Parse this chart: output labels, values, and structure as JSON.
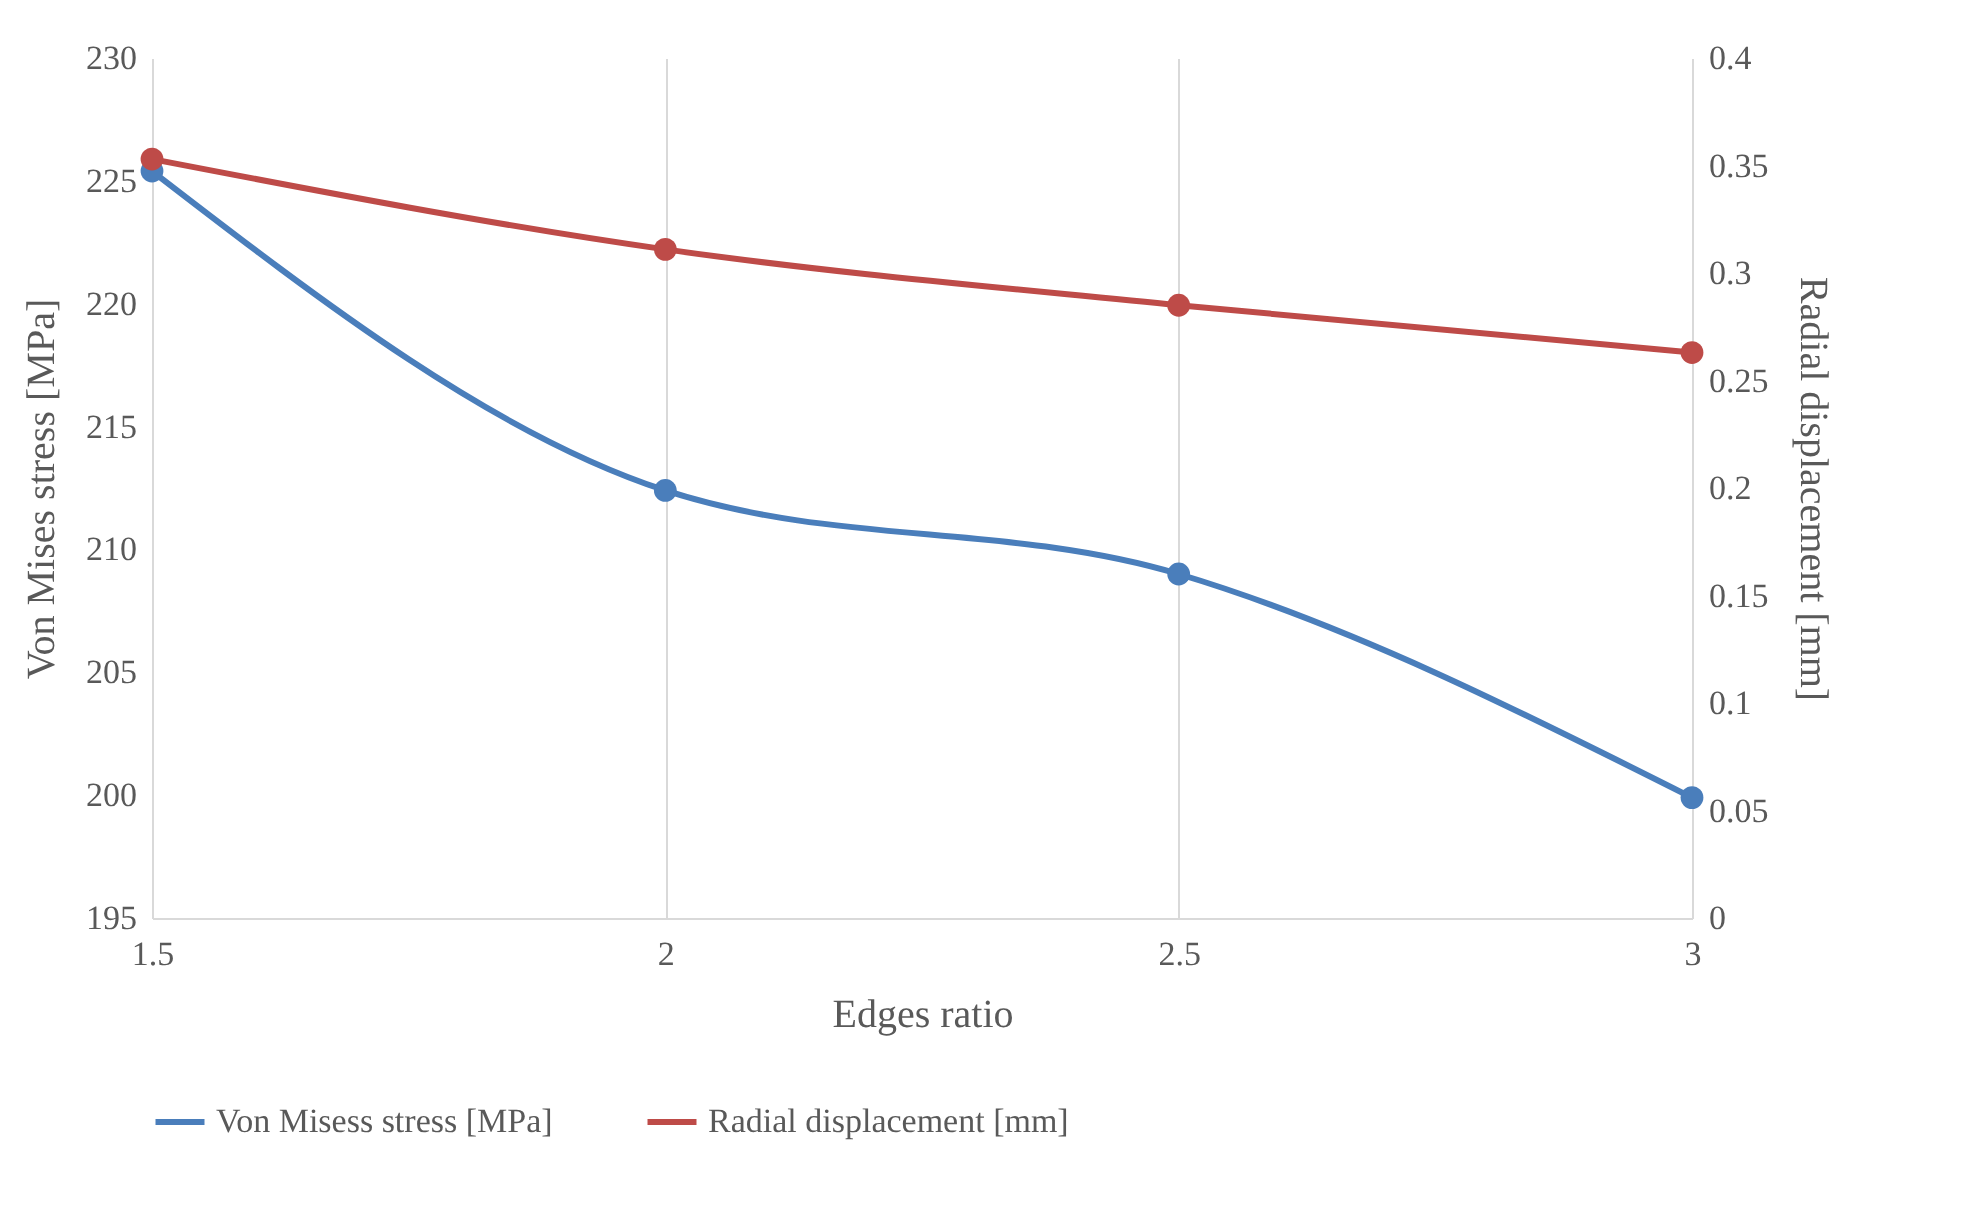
{
  "chart_data": {
    "type": "line",
    "xlabel": "Edges ratio",
    "ylabel": "Von Mises stress [MPa]",
    "y2label": "Radial displacement [mm]",
    "x": [
      1.5,
      2,
      2.5,
      3
    ],
    "series": [
      {
        "name": "Von Misess stress [MPa]",
        "color": "#4a7ebb",
        "values": [
          225.4,
          212.4,
          209.0,
          199.9
        ]
      },
      {
        "name": "Radial displacement [mm]",
        "color": "#be4b48",
        "values": [
          0.353,
          0.311,
          0.285,
          0.263
        ],
        "axis": "y2"
      }
    ],
    "xlim": [
      1.5,
      3
    ],
    "xticks": [
      1.5,
      2,
      2.5,
      3
    ],
    "ylim": [
      195,
      230
    ],
    "yticks": [
      195,
      200,
      205,
      210,
      215,
      220,
      225,
      230
    ],
    "y2lim": [
      0,
      0.4
    ],
    "y2ticks": [
      0,
      0.05,
      0.1,
      0.15,
      0.2,
      0.25,
      0.3,
      0.35,
      0.4
    ],
    "grid": "x",
    "legend": "bottom",
    "marker": "circle",
    "line_style": "solid"
  }
}
